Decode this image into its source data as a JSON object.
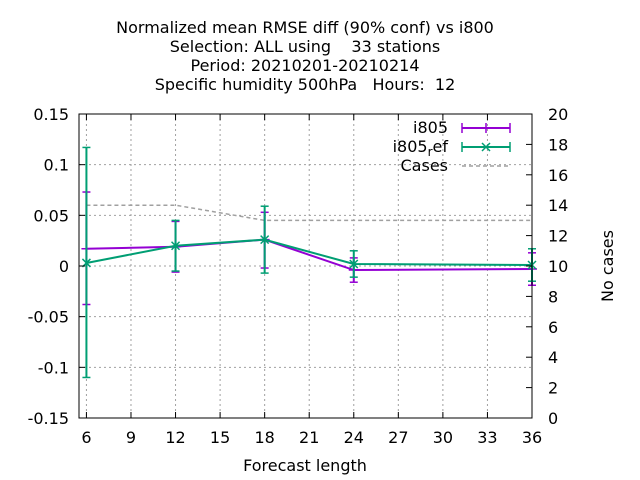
{
  "chart_data": {
    "type": "line",
    "title_lines": [
      "Normalized mean RMSE diff (90% conf) vs i800",
      "Selection: ALL using    33 stations",
      "Period: 20210201-20210214",
      "Specific humidity 500hPa   Hours:  12"
    ],
    "xlabel": "Forecast length",
    "ylabel": "",
    "y2label": "No cases",
    "xlim": [
      5.5,
      36
    ],
    "ylim": [
      -0.15,
      0.15
    ],
    "y2lim": [
      0,
      20
    ],
    "x_ticks": [
      6,
      9,
      12,
      15,
      18,
      21,
      24,
      27,
      30,
      33,
      36
    ],
    "y_ticks": [
      -0.15,
      -0.1,
      -0.05,
      0,
      0.05,
      0.1,
      0.15
    ],
    "y_tick_labels": [
      "-0.15",
      "-0.1",
      "-0.05",
      "0",
      "0.05",
      "0.1",
      "0.15"
    ],
    "y2_ticks": [
      0,
      2,
      4,
      6,
      8,
      10,
      12,
      14,
      16,
      18,
      20
    ],
    "grid": true,
    "legend_position": "top-right",
    "series": [
      {
        "name": "i805",
        "color": "#9400d3",
        "marker": "plus",
        "axis": "y",
        "x": [
          6,
          12,
          18,
          24,
          36
        ],
        "y": [
          0.017,
          0.019,
          0.026,
          -0.004,
          -0.003
        ],
        "err_low": [
          -0.038,
          -0.006,
          -0.002,
          -0.016,
          -0.019
        ],
        "err_high": [
          0.073,
          0.044,
          0.053,
          0.008,
          0.013
        ]
      },
      {
        "name_parts": [
          "i805",
          "r",
          "ef"
        ],
        "color": "#009e73",
        "marker": "cross",
        "axis": "y",
        "x": [
          6,
          12,
          18,
          24,
          36
        ],
        "y": [
          0.003,
          0.02,
          0.026,
          0.002,
          0.001
        ],
        "err_low": [
          -0.11,
          -0.005,
          -0.007,
          -0.011,
          -0.015
        ],
        "err_high": [
          0.117,
          0.045,
          0.059,
          0.015,
          0.017
        ]
      },
      {
        "name": "Cases",
        "color": "#a0a0a0",
        "style": "dashed",
        "axis": "y2",
        "x": [
          6,
          12,
          18,
          24,
          36
        ],
        "y": [
          14,
          14,
          13,
          13,
          13
        ]
      }
    ]
  }
}
